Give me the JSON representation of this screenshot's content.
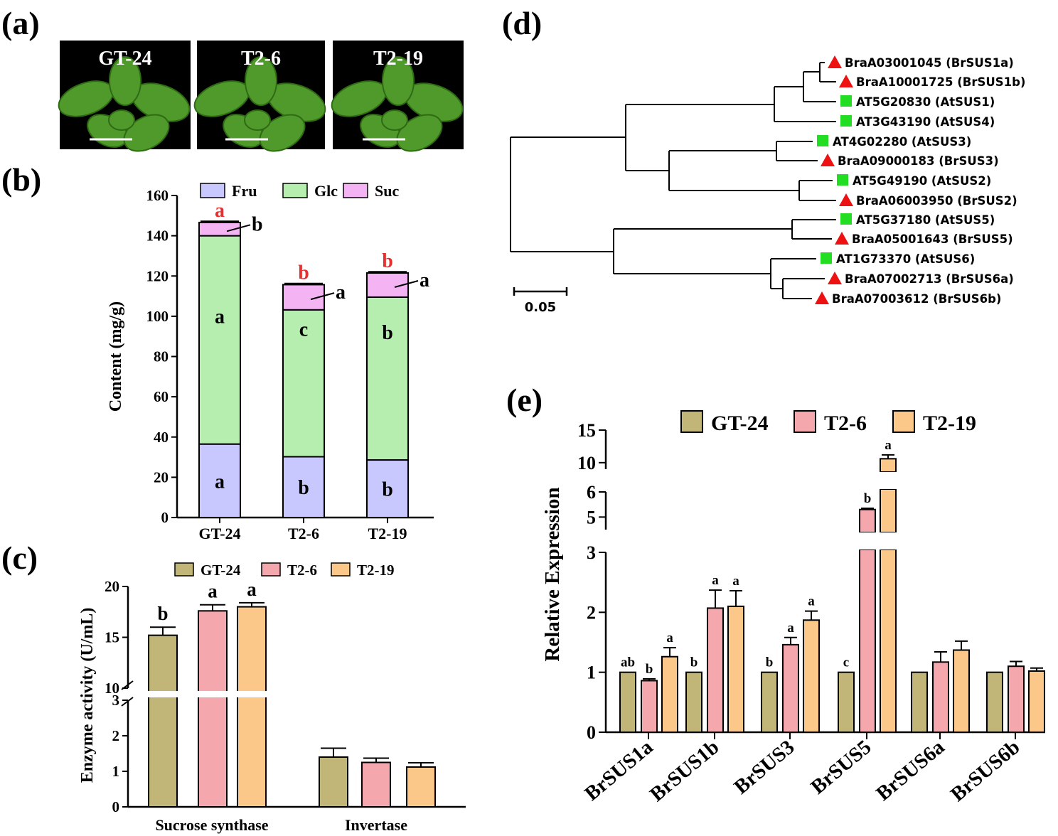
{
  "panel_labels": {
    "a": "(a)",
    "b": "(b)",
    "c": "(c)",
    "d": "(d)",
    "e": "(e)"
  },
  "panel_a": {
    "photos": [
      {
        "label": "GT-24",
        "bg": "#000000"
      },
      {
        "label": "T2-6",
        "bg": "#000000"
      },
      {
        "label": "T2-19",
        "bg": "#000000"
      }
    ]
  },
  "colors": {
    "fru": "#c8c8ff",
    "glc": "#b6eeb0",
    "suc": "#f4b4f4",
    "gt24": "#c2b578",
    "t26": "#f4a8ad",
    "t219": "#fcc88a",
    "red": "#e63030",
    "at_marker": "#22dd22",
    "bra_marker": "#ee1111"
  },
  "chart_data": [
    {
      "id": "b",
      "type": "bar",
      "stacked": true,
      "categories": [
        "GT-24",
        "T2-6",
        "T2-19"
      ],
      "series": [
        {
          "name": "Fru",
          "values": [
            36.5,
            30.2,
            28.6
          ],
          "errors": [
            0.6,
            0.6,
            0.6
          ],
          "letters": [
            "a",
            "b",
            "b"
          ]
        },
        {
          "name": "Glc",
          "values": [
            103.5,
            73.0,
            80.9
          ],
          "errors": [
            0.8,
            0.8,
            1.6
          ],
          "letters": [
            "a",
            "c",
            "b"
          ]
        },
        {
          "name": "Suc",
          "values": [
            6.6,
            12.5,
            12.0
          ],
          "errors": [
            0.5,
            0.6,
            0.6
          ],
          "letters": [
            "b",
            "a",
            "a"
          ]
        }
      ],
      "total_letters": [
        "a",
        "b",
        "b"
      ],
      "ylabel": "Content (mg/g)",
      "ylim": [
        0,
        160
      ],
      "yticks": [
        0,
        20,
        40,
        60,
        80,
        100,
        120,
        140,
        160
      ]
    },
    {
      "id": "c",
      "type": "bar",
      "categories": [
        "Sucrose synthase",
        "Invertase"
      ],
      "series": [
        {
          "name": "GT-24",
          "values": [
            15.2,
            1.4
          ],
          "errors": [
            0.8,
            0.25
          ]
        },
        {
          "name": "T2-6",
          "values": [
            17.6,
            1.25
          ],
          "errors": [
            0.6,
            0.12
          ]
        },
        {
          "name": "T2-19",
          "values": [
            18.0,
            1.12
          ],
          "errors": [
            0.4,
            0.12
          ]
        }
      ],
      "letters": [
        [
          "b",
          "a",
          "a"
        ],
        [
          "",
          "",
          ""
        ]
      ],
      "ylabel": "Enzyme activity (U/mL)",
      "axis_break": {
        "lower": [
          0,
          3
        ],
        "upper": [
          10,
          20
        ]
      },
      "yticks_lower": [
        "0",
        "1",
        "2",
        "3"
      ],
      "yticks_upper": [
        "10",
        "15",
        "20"
      ]
    },
    {
      "id": "e",
      "type": "bar",
      "categories": [
        "BrSUS1a",
        "BrSUS1b",
        "BrSUS3",
        "BrSUS5",
        "BrSUS6a",
        "BrSUS6b"
      ],
      "series": [
        {
          "name": "GT-24",
          "values": [
            1.0,
            1.0,
            1.0,
            1.0,
            1.0,
            1.0
          ],
          "errors": [
            0,
            0,
            0,
            0,
            0,
            0
          ]
        },
        {
          "name": "T2-6",
          "values": [
            0.86,
            2.07,
            1.46,
            5.3,
            1.17,
            1.1
          ],
          "errors": [
            0.03,
            0.3,
            0.12,
            0.05,
            0.17,
            0.08
          ]
        },
        {
          "name": "T2-19",
          "values": [
            1.26,
            2.1,
            1.87,
            10.6,
            1.37,
            1.02
          ],
          "errors": [
            0.15,
            0.26,
            0.15,
            0.6,
            0.15,
            0.05
          ]
        }
      ],
      "letters": [
        [
          "ab",
          "b",
          "a"
        ],
        [
          "b",
          "a",
          "a"
        ],
        [
          "b",
          "a",
          "a"
        ],
        [
          "c",
          "b",
          "a"
        ],
        [
          "",
          "",
          ""
        ],
        [
          "",
          "",
          ""
        ]
      ],
      "ylabel": "Relative Expression",
      "segments": [
        [
          0,
          3
        ],
        [
          4.5,
          6
        ],
        [
          9,
          15
        ]
      ],
      "yticks_lower": [
        "0",
        "1",
        "2",
        "3"
      ],
      "yticks_mid": [
        "5",
        "6"
      ],
      "yticks_upper": [
        "10",
        "15"
      ]
    }
  ],
  "tree": {
    "scale_label": "0.05",
    "leaves": [
      {
        "name": "BraA03001045 (BrSUS1a)",
        "type": "Bra"
      },
      {
        "name": "BraA10001725 (BrSUS1b)",
        "type": "Bra"
      },
      {
        "name": "AT5G20830 (AtSUS1)",
        "type": "At"
      },
      {
        "name": "AT3G43190 (AtSUS4)",
        "type": "At"
      },
      {
        "name": "AT4G02280 (AtSUS3)",
        "type": "At"
      },
      {
        "name": "BraA09000183 (BrSUS3)",
        "type": "Bra"
      },
      {
        "name": "AT5G49190 (AtSUS2)",
        "type": "At"
      },
      {
        "name": "BraA06003950 (BrSUS2)",
        "type": "Bra"
      },
      {
        "name": "AT5G37180 (AtSUS5)",
        "type": "At"
      },
      {
        "name": "BraA05001643 (BrSUS5)",
        "type": "Bra"
      },
      {
        "name": "AT1G73370 (AtSUS6)",
        "type": "At"
      },
      {
        "name": "BraA07002713 (BrSUS6a)",
        "type": "Bra"
      },
      {
        "name": "BraA07003612 (BrSUS6b)",
        "type": "Bra"
      }
    ]
  }
}
